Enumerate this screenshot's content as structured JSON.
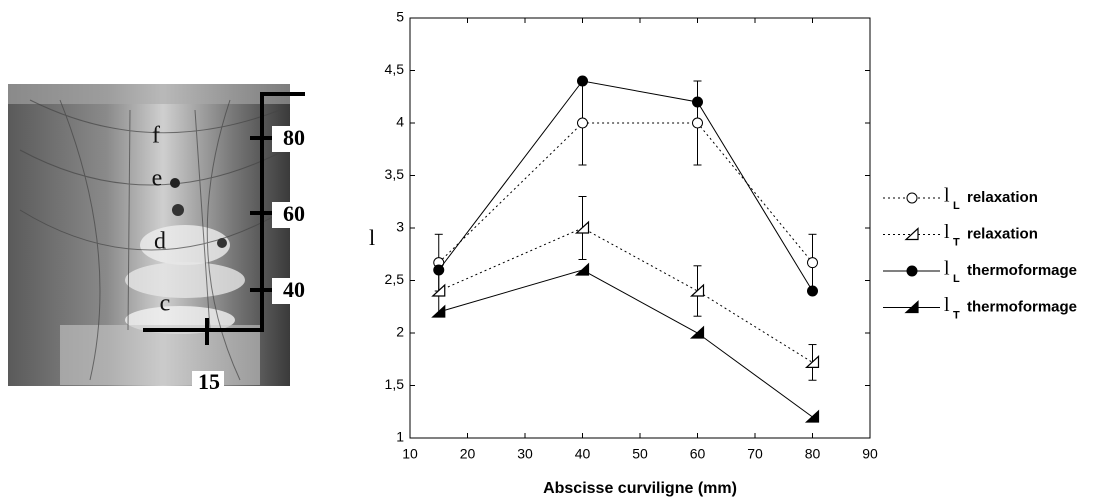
{
  "photo": {
    "labels": [
      "f",
      "e",
      "d",
      "c"
    ],
    "scale_labels": [
      "80",
      "60",
      "40",
      "15"
    ]
  },
  "chart_data": {
    "type": "line",
    "x_label": "Abscisse curviligne (mm)",
    "y_label": "l",
    "x": [
      15,
      40,
      60,
      80
    ],
    "xlim": [
      10,
      90
    ],
    "xticks": [
      10,
      20,
      30,
      40,
      50,
      60,
      70,
      80,
      90
    ],
    "ylim": [
      1,
      5
    ],
    "yticks": [
      1,
      {
        "value": 1.5,
        "label": "1,5"
      },
      2,
      {
        "value": 2.5,
        "label": "2,5"
      },
      3,
      {
        "value": 3.5,
        "label": "3,5"
      },
      4,
      {
        "value": 4.5,
        "label": "4,5"
      },
      5
    ],
    "series": [
      {
        "symbol": "l",
        "subscript": "L",
        "name": "relaxation",
        "color": "#000000",
        "marker": "open-circle",
        "dashed": true,
        "values": [
          2.67,
          4.0,
          4.0,
          2.67
        ],
        "errors": [
          0.27,
          0.4,
          0.4,
          0.27
        ]
      },
      {
        "symbol": "l",
        "subscript": "T",
        "name": "relaxation",
        "color": "#000000",
        "marker": "open-triangle",
        "dashed": true,
        "values": [
          2.4,
          3.0,
          2.4,
          1.72
        ],
        "errors": [
          0.24,
          0.3,
          0.24,
          0.17
        ]
      },
      {
        "symbol": "l",
        "subscript": "L",
        "name": "thermoformage",
        "color": "#000000",
        "marker": "filled-circle",
        "dashed": false,
        "values": [
          2.6,
          4.4,
          4.2,
          2.4
        ]
      },
      {
        "symbol": "l",
        "subscript": "T",
        "name": "thermoformage",
        "color": "#000000",
        "marker": "filled-triangle",
        "dashed": false,
        "values": [
          2.2,
          2.6,
          2.0,
          1.2
        ]
      }
    ]
  }
}
